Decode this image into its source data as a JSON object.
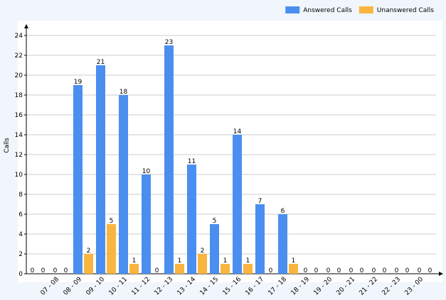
{
  "chart_data": {
    "type": "bar",
    "y_label": "Calls",
    "categories": [
      null,
      "07 - 08",
      "08 - 09",
      "09 - 10",
      "10 - 11",
      "11 - 12",
      "12 - 13",
      "13 - 14",
      "14 - 15",
      "15 - 16",
      "16 - 17",
      "17 - 18",
      "18 - 19",
      "19 - 20",
      "20 - 21",
      "21 - 22",
      "22 - 23",
      "23 - 00"
    ],
    "series": [
      {
        "name": "Answered Calls",
        "color": "#4a8ff0",
        "values": [
          0,
          0,
          19,
          21,
          18,
          10,
          23,
          11,
          5,
          14,
          7,
          6,
          0,
          0,
          0,
          0,
          0,
          0
        ]
      },
      {
        "name": "Unanswered Calls",
        "color": "#f9b53f",
        "values": [
          0,
          0,
          2,
          5,
          1,
          0,
          1,
          2,
          1,
          1,
          0,
          1,
          0,
          0,
          0,
          0,
          0,
          0
        ]
      }
    ],
    "ylim": [
      0,
      25
    ],
    "yticks": [
      0,
      2,
      4,
      6,
      8,
      10,
      12,
      14,
      16,
      18,
      20,
      22,
      24
    ],
    "grid": true,
    "legend": "top-right"
  }
}
